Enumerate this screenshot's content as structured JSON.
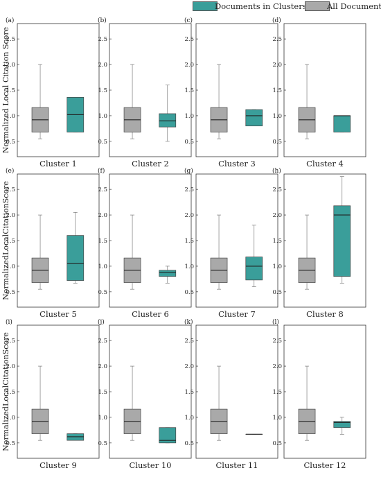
{
  "legend": {
    "clusters_label": "Documents in Clusters",
    "all_label": "All Documents"
  },
  "colors": {
    "clusters": "#3a9e9a",
    "all": "#a9a9a9"
  },
  "chart_data": [
    {
      "type": "boxplot",
      "panel": "(a)",
      "xlabel": "Cluster 1",
      "ylabel": "Normalized Local Citation Score",
      "ylim": [
        0.2,
        2.8
      ],
      "yticks": [
        0.5,
        1.0,
        1.5,
        2.0,
        2.5
      ],
      "series": [
        {
          "name": "All Documents",
          "whisker_low": 0.55,
          "q1": 0.68,
          "median": 0.92,
          "q3": 1.16,
          "whisker_high": 2.0
        },
        {
          "name": "Documents in Clusters",
          "whisker_low": 0.68,
          "q1": 0.68,
          "median": 1.02,
          "q3": 1.36,
          "whisker_high": 1.36
        }
      ]
    },
    {
      "type": "boxplot",
      "panel": "(b)",
      "xlabel": "Cluster 2",
      "ylabel": "",
      "ylim": [
        0.2,
        2.8
      ],
      "yticks": [
        0.5,
        1.0,
        1.5,
        2.0,
        2.5
      ],
      "series": [
        {
          "name": "All Documents",
          "whisker_low": 0.55,
          "q1": 0.68,
          "median": 0.92,
          "q3": 1.16,
          "whisker_high": 2.0
        },
        {
          "name": "Documents in Clusters",
          "whisker_low": 0.5,
          "q1": 0.78,
          "median": 0.9,
          "q3": 1.04,
          "whisker_high": 1.6
        }
      ]
    },
    {
      "type": "boxplot",
      "panel": "(c)",
      "xlabel": "Cluster 3",
      "ylabel": "",
      "ylim": [
        0.2,
        2.8
      ],
      "yticks": [
        0.5,
        1.0,
        1.5,
        2.0,
        2.5
      ],
      "series": [
        {
          "name": "All Documents",
          "whisker_low": 0.55,
          "q1": 0.68,
          "median": 0.92,
          "q3": 1.16,
          "whisker_high": 2.0
        },
        {
          "name": "Documents in Clusters",
          "whisker_low": 0.8,
          "q1": 0.8,
          "median": 1.0,
          "q3": 1.12,
          "whisker_high": 1.12
        }
      ]
    },
    {
      "type": "boxplot",
      "panel": "(d)",
      "xlabel": "Cluster 4",
      "ylabel": "",
      "ylim": [
        0.2,
        2.8
      ],
      "yticks": [
        0.5,
        1.0,
        1.5,
        2.0,
        2.5
      ],
      "series": [
        {
          "name": "All Documents",
          "whisker_low": 0.55,
          "q1": 0.68,
          "median": 0.92,
          "q3": 1.16,
          "whisker_high": 2.0
        },
        {
          "name": "Documents in Clusters",
          "whisker_low": 0.68,
          "q1": 0.68,
          "median": 1.0,
          "q3": 1.0,
          "whisker_high": 1.0
        }
      ]
    },
    {
      "type": "boxplot",
      "panel": "(e)",
      "xlabel": "Cluster 5",
      "ylabel": "NormalizedLocalCitationScore",
      "ylim": [
        0.2,
        2.8
      ],
      "yticks": [
        0.5,
        1.0,
        1.5,
        2.0,
        2.5
      ],
      "series": [
        {
          "name": "All Documents",
          "whisker_low": 0.55,
          "q1": 0.68,
          "median": 0.92,
          "q3": 1.16,
          "whisker_high": 2.0
        },
        {
          "name": "Documents in Clusters",
          "whisker_low": 0.67,
          "q1": 0.72,
          "median": 1.05,
          "q3": 1.6,
          "whisker_high": 2.05
        }
      ]
    },
    {
      "type": "boxplot",
      "panel": "(f)",
      "xlabel": "Cluster 6",
      "ylabel": "",
      "ylim": [
        0.2,
        2.8
      ],
      "yticks": [
        0.5,
        1.0,
        1.5,
        2.0,
        2.5
      ],
      "series": [
        {
          "name": "All Documents",
          "whisker_low": 0.55,
          "q1": 0.68,
          "median": 0.92,
          "q3": 1.16,
          "whisker_high": 2.0
        },
        {
          "name": "Documents in Clusters",
          "whisker_low": 0.67,
          "q1": 0.8,
          "median": 0.88,
          "q3": 0.92,
          "whisker_high": 1.0
        }
      ]
    },
    {
      "type": "boxplot",
      "panel": "(g)",
      "xlabel": "Cluster 7",
      "ylabel": "",
      "ylim": [
        0.2,
        2.8
      ],
      "yticks": [
        0.5,
        1.0,
        1.5,
        2.0,
        2.5
      ],
      "series": [
        {
          "name": "All Documents",
          "whisker_low": 0.55,
          "q1": 0.68,
          "median": 0.92,
          "q3": 1.16,
          "whisker_high": 2.0
        },
        {
          "name": "Documents in Clusters",
          "whisker_low": 0.6,
          "q1": 0.73,
          "median": 1.0,
          "q3": 1.18,
          "whisker_high": 1.8
        }
      ]
    },
    {
      "type": "boxplot",
      "panel": "(h)",
      "xlabel": "Cluster 8",
      "ylabel": "",
      "ylim": [
        0.2,
        2.8
      ],
      "yticks": [
        0.5,
        1.0,
        1.5,
        2.0,
        2.5
      ],
      "series": [
        {
          "name": "All Documents",
          "whisker_low": 0.55,
          "q1": 0.68,
          "median": 0.92,
          "q3": 1.16,
          "whisker_high": 2.0
        },
        {
          "name": "Documents in Clusters",
          "whisker_low": 0.67,
          "q1": 0.8,
          "median": 2.0,
          "q3": 2.18,
          "whisker_high": 2.75
        }
      ]
    },
    {
      "type": "boxplot",
      "panel": "(i)",
      "xlabel": "Cluster 9",
      "ylabel": "NormalizedLocalCitationScore",
      "ylim": [
        0.2,
        2.8
      ],
      "yticks": [
        0.5,
        1.0,
        1.5,
        2.0,
        2.5
      ],
      "series": [
        {
          "name": "All Documents",
          "whisker_low": 0.55,
          "q1": 0.68,
          "median": 0.92,
          "q3": 1.16,
          "whisker_high": 2.0
        },
        {
          "name": "Documents in Clusters",
          "whisker_low": 0.55,
          "q1": 0.55,
          "median": 0.62,
          "q3": 0.68,
          "whisker_high": 0.68
        }
      ]
    },
    {
      "type": "boxplot",
      "panel": "(j)",
      "xlabel": "Cluster 10",
      "ylabel": "",
      "ylim": [
        0.2,
        2.8
      ],
      "yticks": [
        0.5,
        1.0,
        1.5,
        2.0,
        2.5
      ],
      "series": [
        {
          "name": "All Documents",
          "whisker_low": 0.55,
          "q1": 0.68,
          "median": 0.92,
          "q3": 1.16,
          "whisker_high": 2.0
        },
        {
          "name": "Documents in Clusters",
          "whisker_low": 0.5,
          "q1": 0.5,
          "median": 0.55,
          "q3": 0.8,
          "whisker_high": 0.8
        }
      ]
    },
    {
      "type": "boxplot",
      "panel": "(k)",
      "xlabel": "Cluster 11",
      "ylabel": "",
      "ylim": [
        0.2,
        2.8
      ],
      "yticks": [
        0.5,
        1.0,
        1.5,
        2.0,
        2.5
      ],
      "series": [
        {
          "name": "All Documents",
          "whisker_low": 0.55,
          "q1": 0.68,
          "median": 0.92,
          "q3": 1.16,
          "whisker_high": 2.0
        },
        {
          "name": "Documents in Clusters",
          "whisker_low": 0.67,
          "q1": 0.67,
          "median": 0.67,
          "q3": 0.67,
          "whisker_high": 0.67
        }
      ]
    },
    {
      "type": "boxplot",
      "panel": "(l)",
      "xlabel": "Cluster 12",
      "ylabel": "",
      "ylim": [
        0.2,
        2.8
      ],
      "yticks": [
        0.5,
        1.0,
        1.5,
        2.0,
        2.5
      ],
      "series": [
        {
          "name": "All Documents",
          "whisker_low": 0.55,
          "q1": 0.68,
          "median": 0.92,
          "q3": 1.16,
          "whisker_high": 2.0
        },
        {
          "name": "Documents in Clusters",
          "whisker_low": 0.67,
          "q1": 0.8,
          "median": 0.9,
          "q3": 0.92,
          "whisker_high": 1.0
        }
      ]
    }
  ]
}
